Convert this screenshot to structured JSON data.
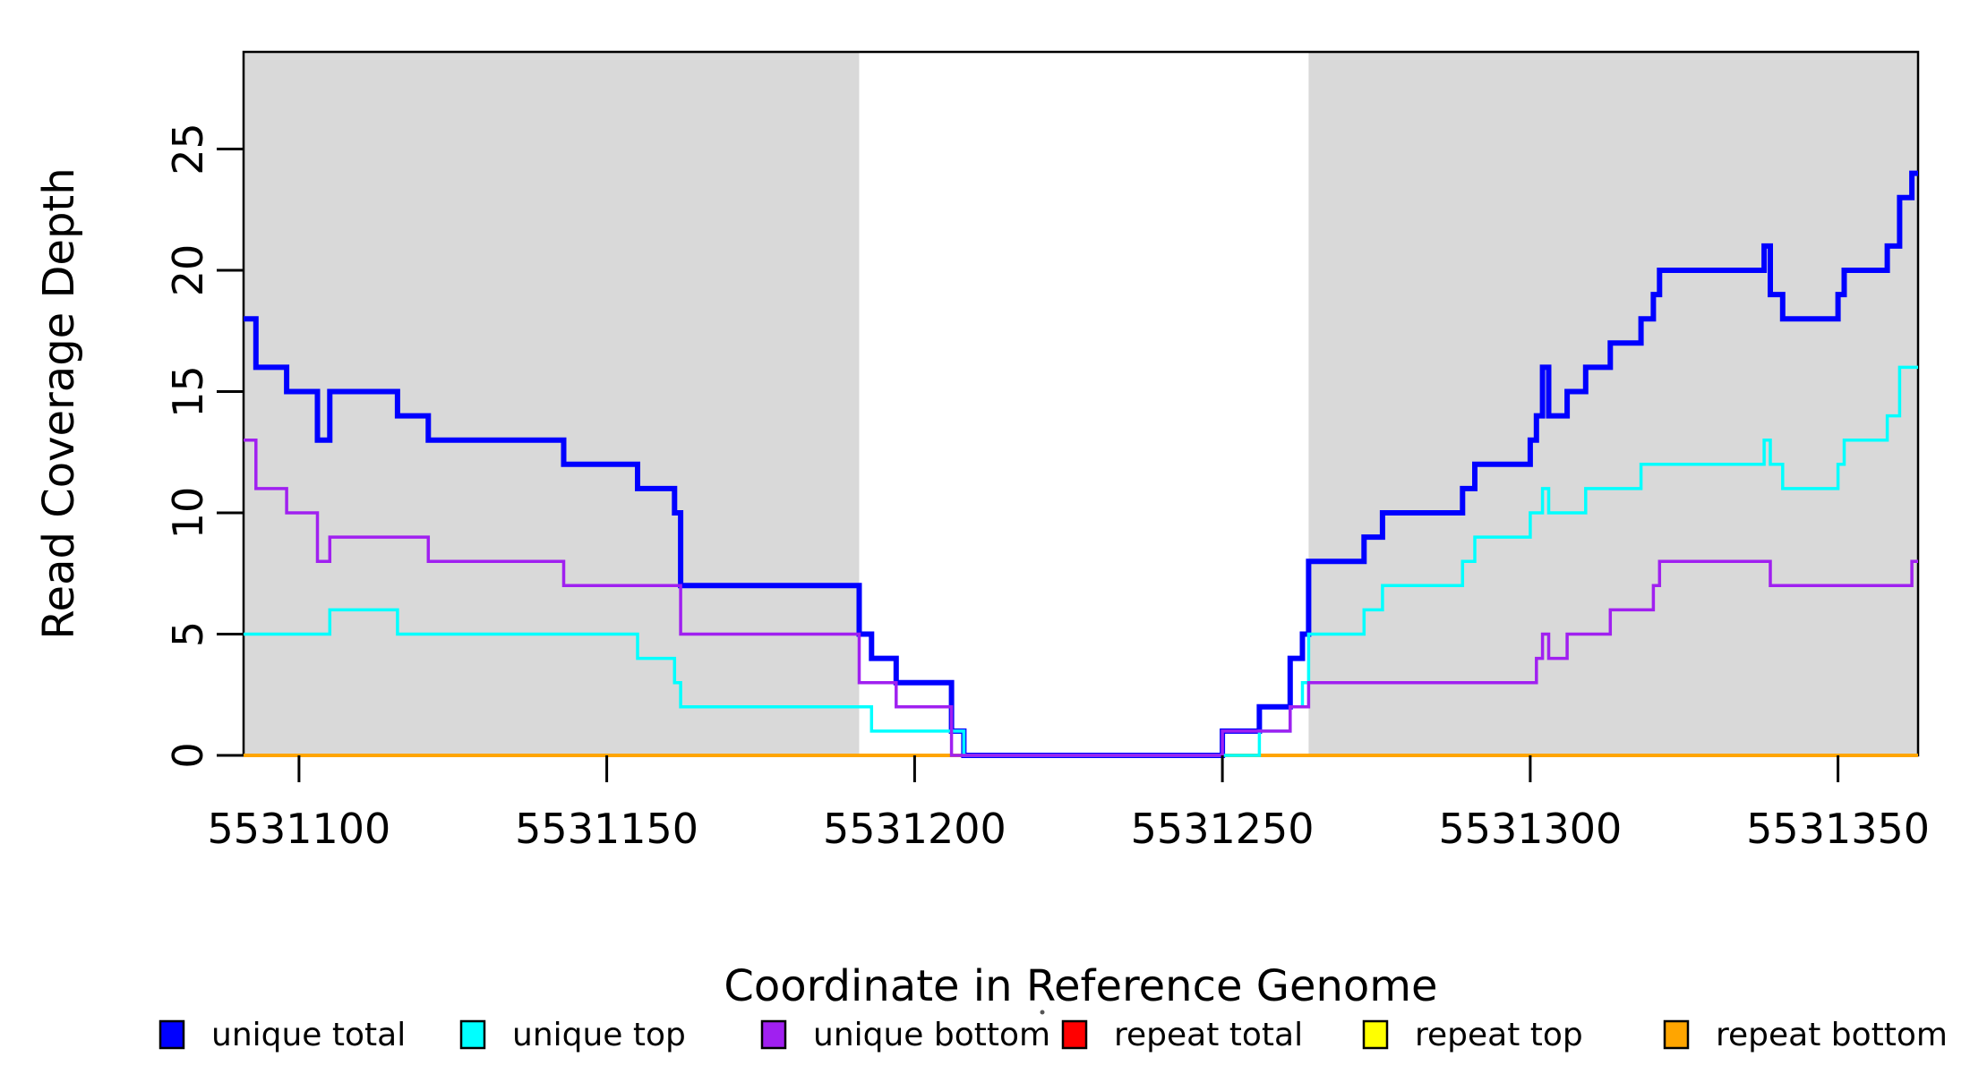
{
  "figure": {
    "background": "#ffffff",
    "shade_color": "#D9D9D9",
    "box_color": "#000000",
    "axis_tick_color": "#000000"
  },
  "chart_data": {
    "type": "line",
    "subtype": "step-coverage",
    "title": "",
    "xlabel": "Coordinate in Reference Genome",
    "ylabel": "Read Coverage Depth",
    "xlim": [
      5531091,
      5531363
    ],
    "ylim": [
      0,
      29
    ],
    "grid": false,
    "x_ticks": [
      5531100,
      5531150,
      5531200,
      5531250,
      5531300,
      5531350
    ],
    "x_tick_labels": [
      "5531100",
      "5531150",
      "5531200",
      "5531250",
      "5531300",
      "5531350"
    ],
    "y_ticks": [
      0,
      5,
      10,
      15,
      20,
      25
    ],
    "y_tick_labels": [
      "0",
      "5",
      "10",
      "15",
      "20",
      "25"
    ],
    "shaded_regions": [
      {
        "from": 5531091,
        "to": 5531191
      },
      {
        "from": 5531264,
        "to": 5531363
      }
    ],
    "series": [
      {
        "name": "repeat total",
        "color": "#FF0000",
        "line_width": 3.5,
        "steps": [
          [
            5531091,
            0
          ]
        ]
      },
      {
        "name": "repeat top",
        "color": "#FFFF00",
        "line_width": 3.5,
        "steps": [
          [
            5531091,
            0
          ]
        ]
      },
      {
        "name": "repeat bottom",
        "color": "#FFA500",
        "line_width": 4,
        "steps": [
          [
            5531091,
            0
          ]
        ]
      },
      {
        "name": "unique total",
        "color": "#0000FF",
        "line_width": 6,
        "steps": [
          [
            5531091,
            18
          ],
          [
            5531093,
            16
          ],
          [
            5531098,
            15
          ],
          [
            5531103,
            13
          ],
          [
            5531105,
            15
          ],
          [
            5531116,
            14
          ],
          [
            5531121,
            13
          ],
          [
            5531143,
            12
          ],
          [
            5531155,
            11
          ],
          [
            5531161,
            10
          ],
          [
            5531162,
            7
          ],
          [
            5531191,
            5
          ],
          [
            5531193,
            4
          ],
          [
            5531197,
            3
          ],
          [
            5531206,
            1
          ],
          [
            5531208,
            0
          ],
          [
            5531250,
            1
          ],
          [
            5531256,
            2
          ],
          [
            5531261,
            4
          ],
          [
            5531263,
            5
          ],
          [
            5531264,
            8
          ],
          [
            5531273,
            9
          ],
          [
            5531276,
            10
          ],
          [
            5531289,
            11
          ],
          [
            5531291,
            12
          ],
          [
            5531300,
            13
          ],
          [
            5531301,
            14
          ],
          [
            5531302,
            16
          ],
          [
            5531303,
            14
          ],
          [
            5531306,
            15
          ],
          [
            5531309,
            16
          ],
          [
            5531313,
            17
          ],
          [
            5531318,
            18
          ],
          [
            5531320,
            19
          ],
          [
            5531321,
            20
          ],
          [
            5531338,
            21
          ],
          [
            5531339,
            19
          ],
          [
            5531341,
            18
          ],
          [
            5531350,
            19
          ],
          [
            5531351,
            20
          ],
          [
            5531358,
            21
          ],
          [
            5531360,
            23
          ],
          [
            5531362,
            24
          ]
        ]
      },
      {
        "name": "unique top",
        "color": "#00FFFF",
        "line_width": 3.5,
        "steps": [
          [
            5531091,
            5
          ],
          [
            5531105,
            6
          ],
          [
            5531116,
            5
          ],
          [
            5531155,
            4
          ],
          [
            5531161,
            3
          ],
          [
            5531162,
            2
          ],
          [
            5531193,
            1
          ],
          [
            5531208,
            0
          ],
          [
            5531256,
            1
          ],
          [
            5531261,
            2
          ],
          [
            5531263,
            3
          ],
          [
            5531264,
            5
          ],
          [
            5531273,
            6
          ],
          [
            5531276,
            7
          ],
          [
            5531289,
            8
          ],
          [
            5531291,
            9
          ],
          [
            5531300,
            10
          ],
          [
            5531302,
            11
          ],
          [
            5531303,
            10
          ],
          [
            5531309,
            11
          ],
          [
            5531318,
            12
          ],
          [
            5531338,
            13
          ],
          [
            5531339,
            12
          ],
          [
            5531341,
            11
          ],
          [
            5531350,
            12
          ],
          [
            5531351,
            13
          ],
          [
            5531358,
            14
          ],
          [
            5531360,
            16
          ]
        ]
      },
      {
        "name": "unique bottom",
        "color": "#A020F0",
        "line_width": 3.5,
        "steps": [
          [
            5531091,
            13
          ],
          [
            5531093,
            11
          ],
          [
            5531098,
            10
          ],
          [
            5531103,
            8
          ],
          [
            5531105,
            9
          ],
          [
            5531121,
            8
          ],
          [
            5531143,
            7
          ],
          [
            5531162,
            5
          ],
          [
            5531191,
            3
          ],
          [
            5531197,
            2
          ],
          [
            5531206,
            0
          ],
          [
            5531250,
            1
          ],
          [
            5531261,
            2
          ],
          [
            5531264,
            3
          ],
          [
            5531301,
            4
          ],
          [
            5531302,
            5
          ],
          [
            5531303,
            4
          ],
          [
            5531306,
            5
          ],
          [
            5531313,
            6
          ],
          [
            5531320,
            7
          ],
          [
            5531321,
            8
          ],
          [
            5531339,
            7
          ],
          [
            5531362,
            8
          ]
        ]
      }
    ],
    "legend_position": "bottom"
  },
  "legend": {
    "items": [
      {
        "label": "unique total",
        "color": "#0000FF"
      },
      {
        "label": "unique top",
        "color": "#00FFFF"
      },
      {
        "label": "unique bottom",
        "color": "#A020F0"
      },
      {
        "label": "repeat total",
        "color": "#FF0000"
      },
      {
        "label": "repeat top",
        "color": "#FFFF00"
      },
      {
        "label": "repeat bottom",
        "color": "#FFA500"
      }
    ]
  }
}
